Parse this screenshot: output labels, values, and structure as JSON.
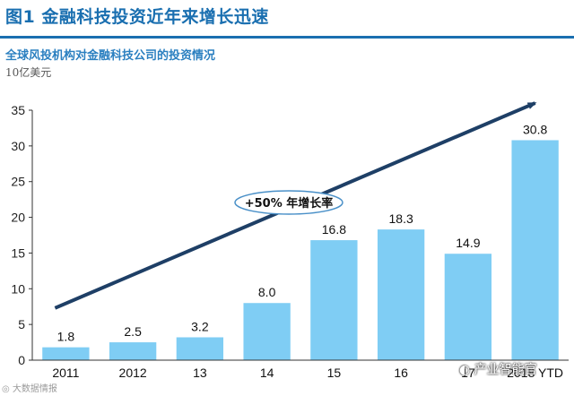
{
  "figure_title": "图1  金融科技投资近年来增长迅速",
  "subtitle": "全球风投机构对金融科技公司的投资情况",
  "unit_label": "10亿美元",
  "annotation": "+50% 年增长率",
  "watermark_left": "大数据情报",
  "watermark_right": "产业智能官",
  "colors": {
    "bar": "#7fcdf4",
    "title": "#1a6fb0",
    "arrow": "#1e3f66",
    "ellipse": "#4a90c8"
  },
  "chart_data": {
    "type": "bar",
    "categories": [
      "2011",
      "2012",
      "13",
      "14",
      "15",
      "16",
      "17",
      "2018 YTD"
    ],
    "values": [
      1.8,
      2.5,
      3.2,
      8.0,
      16.8,
      18.3,
      14.9,
      30.8
    ],
    "value_labels": [
      "1.8",
      "2.5",
      "3.2",
      "8.0",
      "16.8",
      "18.3",
      "14.9",
      "30.8"
    ],
    "ylim": [
      0,
      35
    ],
    "yticks": [
      0,
      5,
      10,
      15,
      20,
      25,
      30,
      35
    ],
    "grid": false,
    "legend": "none",
    "trend_arrow": {
      "from_index": 0,
      "to_index": 7
    }
  }
}
